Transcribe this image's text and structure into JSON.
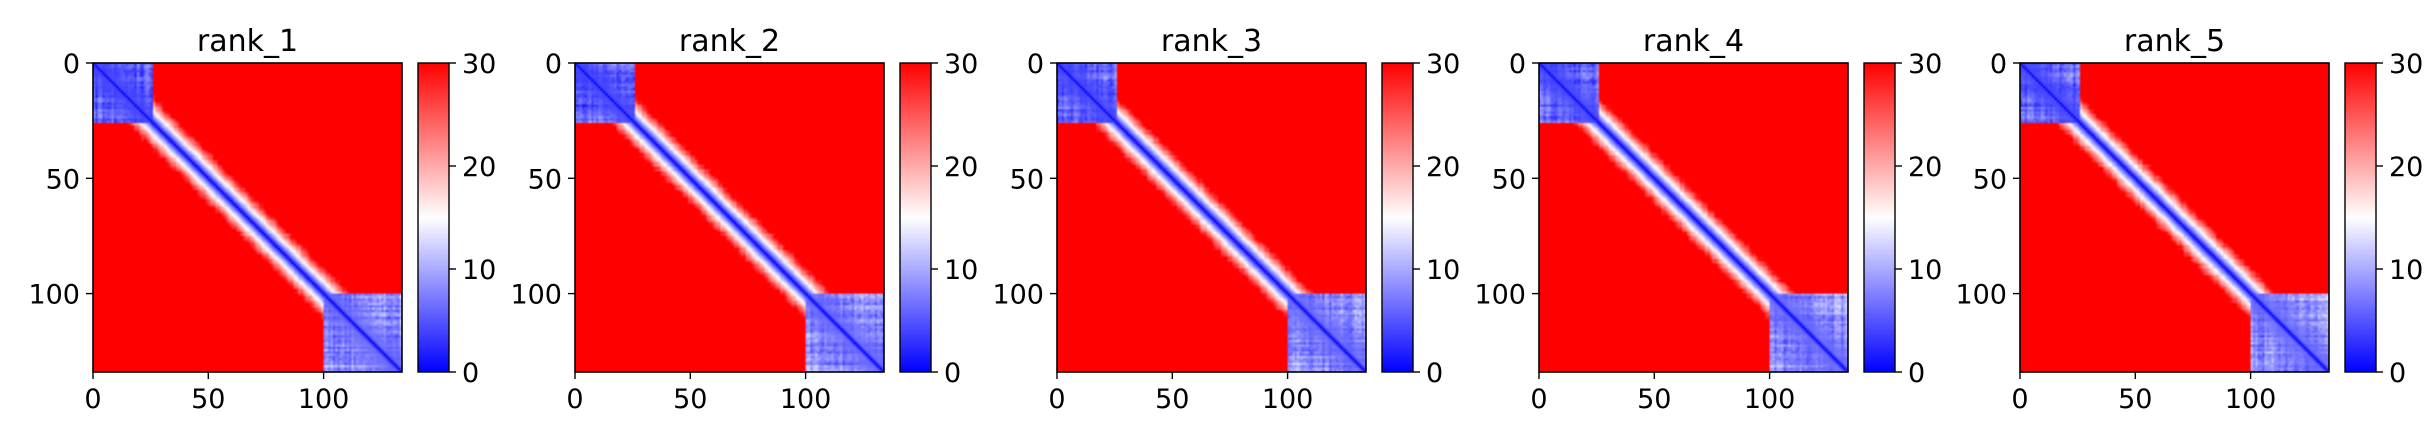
{
  "chart_data": [
    {
      "type": "heatmap",
      "title": "rank_1",
      "xlim": [
        0,
        134
      ],
      "ylim": [
        134,
        0
      ],
      "xticks": [
        0,
        50,
        100
      ],
      "yticks": [
        0,
        50,
        100
      ],
      "colorbar": {
        "range": [
          0,
          30
        ],
        "ticks": [
          0,
          10,
          20,
          30
        ],
        "colormap": [
          "#0000ff",
          "#ffffff",
          "#ff0000"
        ]
      },
      "blocks": [
        {
          "from": 0,
          "to": 25,
          "distance": 4
        },
        {
          "from": 100,
          "to": 134,
          "distance": 6
        }
      ]
    },
    {
      "type": "heatmap",
      "title": "rank_2",
      "xlim": [
        0,
        134
      ],
      "ylim": [
        134,
        0
      ],
      "xticks": [
        0,
        50,
        100
      ],
      "yticks": [
        0,
        50,
        100
      ],
      "colorbar": {
        "range": [
          0,
          30
        ],
        "ticks": [
          0,
          10,
          20,
          30
        ],
        "colormap": [
          "#0000ff",
          "#ffffff",
          "#ff0000"
        ]
      },
      "blocks": [
        {
          "from": 0,
          "to": 25,
          "distance": 4
        },
        {
          "from": 100,
          "to": 134,
          "distance": 6
        }
      ]
    },
    {
      "type": "heatmap",
      "title": "rank_3",
      "xlim": [
        0,
        134
      ],
      "ylim": [
        134,
        0
      ],
      "xticks": [
        0,
        50,
        100
      ],
      "yticks": [
        0,
        50,
        100
      ],
      "colorbar": {
        "range": [
          0,
          30
        ],
        "ticks": [
          0,
          10,
          20,
          30
        ],
        "colormap": [
          "#0000ff",
          "#ffffff",
          "#ff0000"
        ]
      },
      "blocks": [
        {
          "from": 0,
          "to": 25,
          "distance": 4
        },
        {
          "from": 100,
          "to": 134,
          "distance": 6
        }
      ]
    },
    {
      "type": "heatmap",
      "title": "rank_4",
      "xlim": [
        0,
        134
      ],
      "ylim": [
        134,
        0
      ],
      "xticks": [
        0,
        50,
        100
      ],
      "yticks": [
        0,
        50,
        100
      ],
      "colorbar": {
        "range": [
          0,
          30
        ],
        "ticks": [
          0,
          10,
          20,
          30
        ],
        "colormap": [
          "#0000ff",
          "#ffffff",
          "#ff0000"
        ]
      },
      "blocks": [
        {
          "from": 0,
          "to": 25,
          "distance": 4
        },
        {
          "from": 100,
          "to": 134,
          "distance": 6
        }
      ]
    },
    {
      "type": "heatmap",
      "title": "rank_5",
      "xlim": [
        0,
        134
      ],
      "ylim": [
        134,
        0
      ],
      "xticks": [
        0,
        50,
        100
      ],
      "yticks": [
        0,
        50,
        100
      ],
      "colorbar": {
        "range": [
          0,
          30
        ],
        "ticks": [
          0,
          10,
          20,
          30
        ],
        "colormap": [
          "#0000ff",
          "#ffffff",
          "#ff0000"
        ]
      },
      "blocks": [
        {
          "from": 0,
          "to": 25,
          "distance": 4
        },
        {
          "from": 100,
          "to": 134,
          "distance": 6
        }
      ]
    }
  ]
}
